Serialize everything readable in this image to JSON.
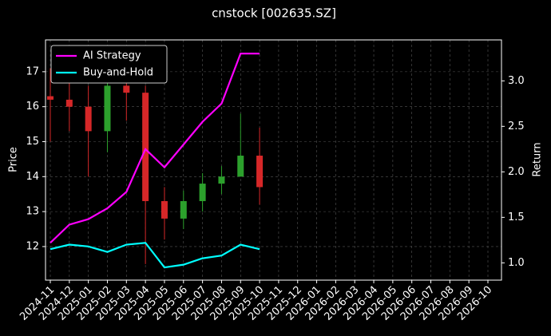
{
  "chart_data": {
    "type": "candlestick",
    "title": "cnstock [002635.SZ]",
    "ylabel": "Price",
    "y2label": "Return",
    "x": [
      "2024-11",
      "2024-12",
      "2025-01",
      "2025-02",
      "2025-03",
      "2025-04",
      "2025-05",
      "2025-06",
      "2025-07",
      "2025-08",
      "2025-09",
      "2025-10"
    ],
    "candles": {
      "open": [
        16.3,
        16.2,
        16.0,
        15.3,
        16.6,
        16.4,
        13.3,
        12.8,
        13.3,
        13.8,
        14.0,
        14.6
      ],
      "high": [
        17.1,
        17.2,
        16.6,
        17.0,
        17.1,
        16.6,
        13.7,
        13.6,
        14.1,
        14.3,
        15.8,
        15.4
      ],
      "low": [
        15.0,
        15.3,
        14.0,
        14.7,
        15.6,
        11.5,
        12.2,
        12.5,
        13.0,
        13.5,
        14.0,
        13.2
      ],
      "close": [
        16.2,
        16.0,
        15.3,
        16.6,
        16.4,
        13.3,
        12.8,
        13.3,
        13.8,
        14.0,
        14.6,
        13.7
      ],
      "up_color": "#2ca02c",
      "down_color": "#d62728"
    },
    "series": [
      {
        "name": "AI Strategy",
        "color": "#ff00ff",
        "axis": "y2",
        "values": [
          1.22,
          1.42,
          1.48,
          1.6,
          1.78,
          2.25,
          2.05,
          2.3,
          2.55,
          2.75,
          3.3,
          3.3
        ]
      },
      {
        "name": "Buy-and-Hold",
        "color": "#00ffff",
        "axis": "y2",
        "values": [
          1.15,
          1.2,
          1.18,
          1.12,
          1.2,
          1.22,
          0.95,
          0.98,
          1.05,
          1.08,
          1.2,
          1.15
        ]
      }
    ],
    "xlim": [
      "2024-11",
      "2026-10"
    ],
    "xticks": [
      "2024-11",
      "2024-12",
      "2025-01",
      "2025-02",
      "2025-03",
      "2025-04",
      "2025-05",
      "2025-06",
      "2025-07",
      "2025-08",
      "2025-09",
      "2025-10",
      "2025-11",
      "2025-12",
      "2026-01",
      "2026-02",
      "2026-03",
      "2026-04",
      "2026-05",
      "2026-06",
      "2026-07",
      "2026-08",
      "2026-09",
      "2026-10"
    ],
    "ylim": [
      11.04,
      17.91
    ],
    "yticks": [
      12,
      13,
      14,
      15,
      16,
      17
    ],
    "y2lim": [
      0.81,
      3.45
    ],
    "y2ticks": [
      {
        "value": 1.0,
        "label": "1.0"
      },
      {
        "value": 1.5,
        "label": "1.5"
      },
      {
        "value": 2.0,
        "label": "2.0"
      },
      {
        "value": 2.5,
        "label": "2.5"
      },
      {
        "value": 3.0,
        "label": "3.0"
      }
    ],
    "grid": true,
    "legend": "upper left"
  }
}
